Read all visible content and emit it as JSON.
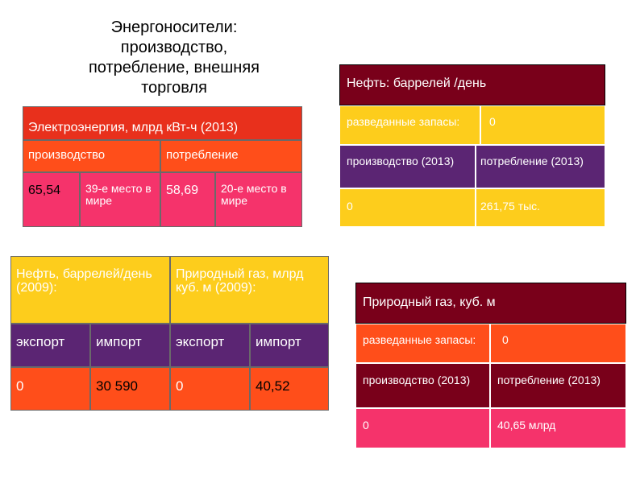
{
  "title": "Энергоносители: производство, потребление, внешняя торговля",
  "electricity": {
    "header": "Электроэнергия, млрд кВт-ч (2013)",
    "production_label": "производство",
    "consumption_label": "потребление",
    "production_value": "65,54",
    "production_rank": "39-е место в мире",
    "consumption_value": "58,69",
    "consumption_rank": "20-е место в мире"
  },
  "oil_trade": {
    "oil_header": "Нефть, баррелей/день (2009):",
    "gas_header": "Природный газ, млрд куб. м (2009):",
    "oil_export_label": "экспорт",
    "oil_import_label": "импорт",
    "gas_export_label": "экспорт",
    "gas_import_label": "импорт",
    "oil_export_value": "0",
    "oil_import_value": "30 590",
    "gas_export_value": "0",
    "gas_import_value": "40,52"
  },
  "oil": {
    "header": "Нефть: баррелей /день",
    "reserves_label": "разведанные запасы:",
    "reserves_value": "0",
    "production_label": "производство (2013)",
    "consumption_label": "потребление (2013)",
    "production_value": "0",
    "consumption_value": "261,75 тыс."
  },
  "gas": {
    "header": "Природный газ,  куб. м",
    "reserves_label": "разведанные запасы:",
    "reserves_value": "0",
    "production_label": "производство (2013)",
    "consumption_label": "потребление (2013)",
    "production_value": "0",
    "consumption_value": "40,65 млрд"
  }
}
